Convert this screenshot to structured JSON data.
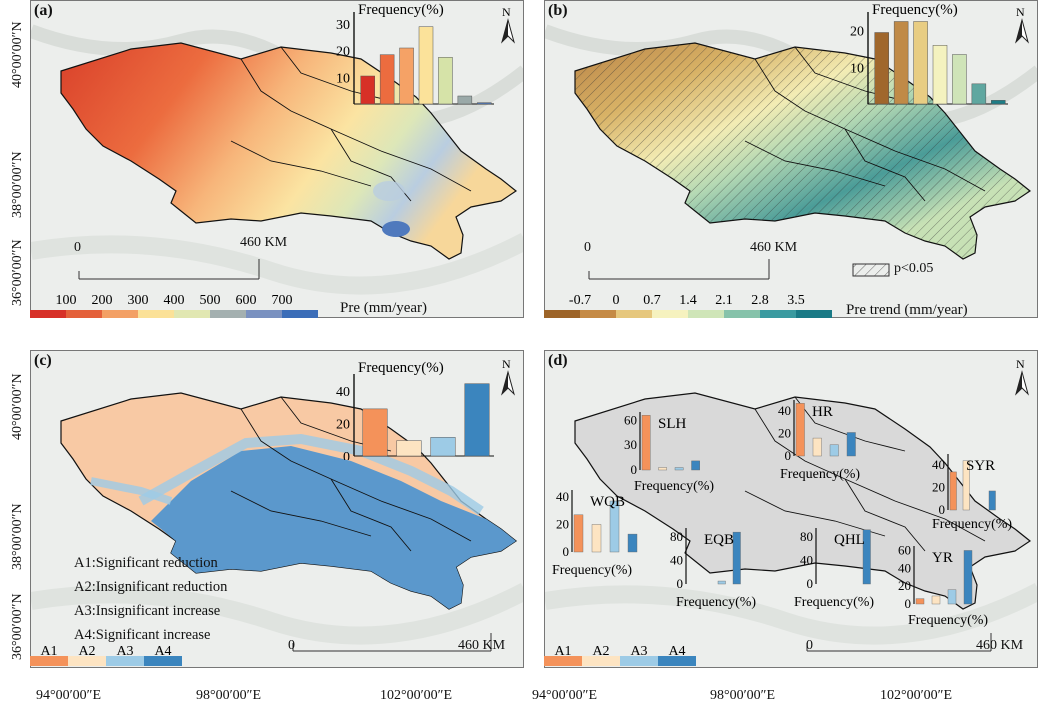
{
  "panels": [
    {
      "id": "a",
      "label": "(a)",
      "chart": {
        "title": "Frequency(%)",
        "yticks": [
          "10",
          "20",
          "30"
        ],
        "values": [
          10.5,
          18.5,
          21,
          29,
          17.5,
          3,
          0.5
        ],
        "ymax": 33,
        "colors": [
          "#d73027",
          "#ec6c3f",
          "#f5a266",
          "#fbe29a",
          "#d6e3a8",
          "#9aa9a8",
          "#4f79bd"
        ]
      },
      "colorbar": {
        "ticks": [
          "100",
          "200",
          "300",
          "400",
          "500",
          "600",
          "700"
        ],
        "unit": "Pre (mm/year)",
        "colors": [
          "#d73027",
          "#e4603a",
          "#f3a065",
          "#fbe198",
          "#e1e7b2",
          "#a4b0b0",
          "#7a91c0",
          "#3b6db8"
        ]
      },
      "scale": {
        "start": "0",
        "end": "460 KM"
      }
    },
    {
      "id": "b",
      "label": "(b)",
      "chart": {
        "title": "Frequency(%)",
        "yticks": [
          "10",
          "20"
        ],
        "values": [
          19.5,
          22.5,
          22.5,
          16,
          13.5,
          5.5,
          1
        ],
        "ymax": 24,
        "colors": [
          "#a0672c",
          "#c08a47",
          "#e8cd83",
          "#f4f2bf",
          "#cfe4b8",
          "#5fa7a0",
          "#1e7d86"
        ]
      },
      "colorbar": {
        "ticks": [
          "-0.7",
          "0",
          "0.7",
          "1.4",
          "2.1",
          "2.8",
          "3.5"
        ],
        "unit": "Pre trend (mm/year)",
        "colors": [
          "#9d6428",
          "#c58a45",
          "#e6c77d",
          "#f6f2bf",
          "#cfe5b8",
          "#86c2aa",
          "#3a9aa0",
          "#1a7a86"
        ]
      },
      "scale": {
        "start": "0",
        "end": "460 KM"
      },
      "hatch_legend": "p<0.05"
    },
    {
      "id": "c",
      "label": "(c)",
      "chart": {
        "title": "Frequency(%)",
        "yticks": [
          "0",
          "20",
          "40"
        ],
        "values": [
          29,
          9.5,
          11.5,
          44.5
        ],
        "ymax": 48,
        "colors": [
          "#f4925a",
          "#fde4c2",
          "#9dcbe6",
          "#3b85be"
        ]
      },
      "legend_lines": [
        "A1:Significant reduction",
        "A2:Insignificant reduction",
        "A3:Insignificant increase",
        "A4:Significant increase"
      ],
      "classes": [
        "A1",
        "A2",
        "A3",
        "A4"
      ],
      "scale": {
        "start": "0",
        "end": "460 KM"
      }
    },
    {
      "id": "d",
      "label": "(d)",
      "classes": [
        "A1",
        "A2",
        "A3",
        "A4"
      ],
      "scale": {
        "start": "0",
        "end": "460 KM"
      },
      "regions": [
        {
          "name": "SLH",
          "yticks": [
            "0",
            "30",
            "60"
          ],
          "values": [
            66,
            3,
            3,
            11
          ],
          "ymax": 70,
          "freq": "Frequency(%)"
        },
        {
          "name": "HR",
          "yticks": [
            "0",
            "20",
            "40"
          ],
          "values": [
            47,
            16,
            10,
            21
          ],
          "ymax": 50,
          "freq": "Frequency(%)"
        },
        {
          "name": "SYR",
          "yticks": [
            "0",
            "20",
            "40"
          ],
          "values": [
            34,
            44,
            0,
            17
          ],
          "ymax": 50,
          "freq": "Frequency(%)"
        },
        {
          "name": "WQB",
          "yticks": [
            "0",
            "20",
            "40"
          ],
          "values": [
            27,
            20,
            37,
            13
          ],
          "ymax": 45,
          "freq": "Frequency(%)"
        },
        {
          "name": "EQB",
          "yticks": [
            "0",
            "40",
            "80"
          ],
          "values": [
            0,
            0,
            5,
            88
          ],
          "ymax": 95,
          "freq": "Frequency(%)"
        },
        {
          "name": "QHL",
          "yticks": [
            "0",
            "40",
            "80"
          ],
          "values": [
            0,
            0,
            0,
            92
          ],
          "ymax": 95,
          "freq": "Frequency(%)"
        },
        {
          "name": "YR",
          "yticks": [
            "0",
            "20",
            "40",
            "60"
          ],
          "values": [
            6,
            9,
            16,
            60
          ],
          "ymax": 65,
          "freq": "Frequency(%)"
        }
      ]
    }
  ],
  "axes": {
    "lat": [
      "40°00′00″N",
      "38°00′00″N",
      "36°00′00″N"
    ],
    "lon": [
      "94°00′00″E",
      "98°00′00″E",
      "102°00′00″E"
    ]
  },
  "north": "N",
  "class_colors": [
    "#f4925a",
    "#fde4c2",
    "#9dcbe6",
    "#3b85be"
  ]
}
